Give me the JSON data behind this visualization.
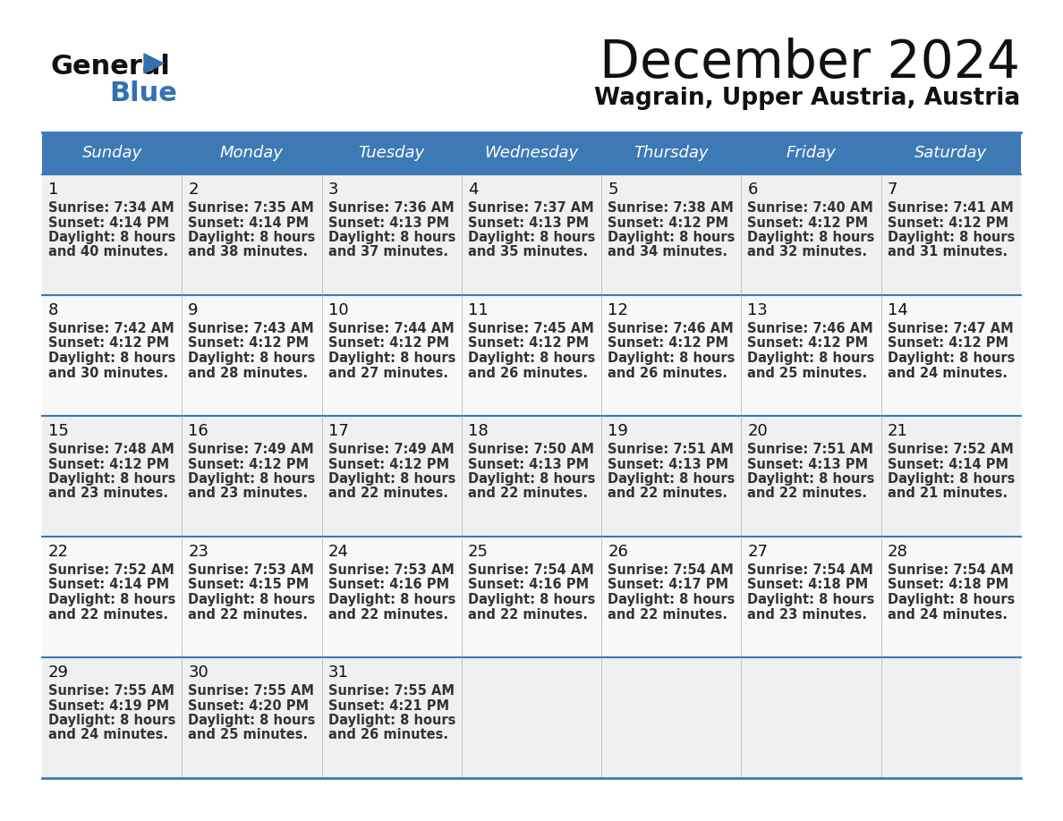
{
  "title": "December 2024",
  "subtitle": "Wagrain, Upper Austria, Austria",
  "header_color": "#3d7ab5",
  "header_text_color": "#ffffff",
  "border_color": "#3d7ab5",
  "cell_bg_color": "#f0f0f0",
  "days_of_week": [
    "Sunday",
    "Monday",
    "Tuesday",
    "Wednesday",
    "Thursday",
    "Friday",
    "Saturday"
  ],
  "weeks": [
    [
      {
        "day": "1",
        "sunrise": "7:34 AM",
        "sunset": "4:14 PM",
        "daylight_h": "8 hours",
        "daylight_m": "and 40 minutes."
      },
      {
        "day": "2",
        "sunrise": "7:35 AM",
        "sunset": "4:14 PM",
        "daylight_h": "8 hours",
        "daylight_m": "and 38 minutes."
      },
      {
        "day": "3",
        "sunrise": "7:36 AM",
        "sunset": "4:13 PM",
        "daylight_h": "8 hours",
        "daylight_m": "and 37 minutes."
      },
      {
        "day": "4",
        "sunrise": "7:37 AM",
        "sunset": "4:13 PM",
        "daylight_h": "8 hours",
        "daylight_m": "and 35 minutes."
      },
      {
        "day": "5",
        "sunrise": "7:38 AM",
        "sunset": "4:12 PM",
        "daylight_h": "8 hours",
        "daylight_m": "and 34 minutes."
      },
      {
        "day": "6",
        "sunrise": "7:40 AM",
        "sunset": "4:12 PM",
        "daylight_h": "8 hours",
        "daylight_m": "and 32 minutes."
      },
      {
        "day": "7",
        "sunrise": "7:41 AM",
        "sunset": "4:12 PM",
        "daylight_h": "8 hours",
        "daylight_m": "and 31 minutes."
      }
    ],
    [
      {
        "day": "8",
        "sunrise": "7:42 AM",
        "sunset": "4:12 PM",
        "daylight_h": "8 hours",
        "daylight_m": "and 30 minutes."
      },
      {
        "day": "9",
        "sunrise": "7:43 AM",
        "sunset": "4:12 PM",
        "daylight_h": "8 hours",
        "daylight_m": "and 28 minutes."
      },
      {
        "day": "10",
        "sunrise": "7:44 AM",
        "sunset": "4:12 PM",
        "daylight_h": "8 hours",
        "daylight_m": "and 27 minutes."
      },
      {
        "day": "11",
        "sunrise": "7:45 AM",
        "sunset": "4:12 PM",
        "daylight_h": "8 hours",
        "daylight_m": "and 26 minutes."
      },
      {
        "day": "12",
        "sunrise": "7:46 AM",
        "sunset": "4:12 PM",
        "daylight_h": "8 hours",
        "daylight_m": "and 26 minutes."
      },
      {
        "day": "13",
        "sunrise": "7:46 AM",
        "sunset": "4:12 PM",
        "daylight_h": "8 hours",
        "daylight_m": "and 25 minutes."
      },
      {
        "day": "14",
        "sunrise": "7:47 AM",
        "sunset": "4:12 PM",
        "daylight_h": "8 hours",
        "daylight_m": "and 24 minutes."
      }
    ],
    [
      {
        "day": "15",
        "sunrise": "7:48 AM",
        "sunset": "4:12 PM",
        "daylight_h": "8 hours",
        "daylight_m": "and 23 minutes."
      },
      {
        "day": "16",
        "sunrise": "7:49 AM",
        "sunset": "4:12 PM",
        "daylight_h": "8 hours",
        "daylight_m": "and 23 minutes."
      },
      {
        "day": "17",
        "sunrise": "7:49 AM",
        "sunset": "4:12 PM",
        "daylight_h": "8 hours",
        "daylight_m": "and 22 minutes."
      },
      {
        "day": "18",
        "sunrise": "7:50 AM",
        "sunset": "4:13 PM",
        "daylight_h": "8 hours",
        "daylight_m": "and 22 minutes."
      },
      {
        "day": "19",
        "sunrise": "7:51 AM",
        "sunset": "4:13 PM",
        "daylight_h": "8 hours",
        "daylight_m": "and 22 minutes."
      },
      {
        "day": "20",
        "sunrise": "7:51 AM",
        "sunset": "4:13 PM",
        "daylight_h": "8 hours",
        "daylight_m": "and 22 minutes."
      },
      {
        "day": "21",
        "sunrise": "7:52 AM",
        "sunset": "4:14 PM",
        "daylight_h": "8 hours",
        "daylight_m": "and 21 minutes."
      }
    ],
    [
      {
        "day": "22",
        "sunrise": "7:52 AM",
        "sunset": "4:14 PM",
        "daylight_h": "8 hours",
        "daylight_m": "and 22 minutes."
      },
      {
        "day": "23",
        "sunrise": "7:53 AM",
        "sunset": "4:15 PM",
        "daylight_h": "8 hours",
        "daylight_m": "and 22 minutes."
      },
      {
        "day": "24",
        "sunrise": "7:53 AM",
        "sunset": "4:16 PM",
        "daylight_h": "8 hours",
        "daylight_m": "and 22 minutes."
      },
      {
        "day": "25",
        "sunrise": "7:54 AM",
        "sunset": "4:16 PM",
        "daylight_h": "8 hours",
        "daylight_m": "and 22 minutes."
      },
      {
        "day": "26",
        "sunrise": "7:54 AM",
        "sunset": "4:17 PM",
        "daylight_h": "8 hours",
        "daylight_m": "and 22 minutes."
      },
      {
        "day": "27",
        "sunrise": "7:54 AM",
        "sunset": "4:18 PM",
        "daylight_h": "8 hours",
        "daylight_m": "and 23 minutes."
      },
      {
        "day": "28",
        "sunrise": "7:54 AM",
        "sunset": "4:18 PM",
        "daylight_h": "8 hours",
        "daylight_m": "and 24 minutes."
      }
    ],
    [
      {
        "day": "29",
        "sunrise": "7:55 AM",
        "sunset": "4:19 PM",
        "daylight_h": "8 hours",
        "daylight_m": "and 24 minutes."
      },
      {
        "day": "30",
        "sunrise": "7:55 AM",
        "sunset": "4:20 PM",
        "daylight_h": "8 hours",
        "daylight_m": "and 25 minutes."
      },
      {
        "day": "31",
        "sunrise": "7:55 AM",
        "sunset": "4:21 PM",
        "daylight_h": "8 hours",
        "daylight_m": "and 26 minutes."
      },
      null,
      null,
      null,
      null
    ]
  ]
}
